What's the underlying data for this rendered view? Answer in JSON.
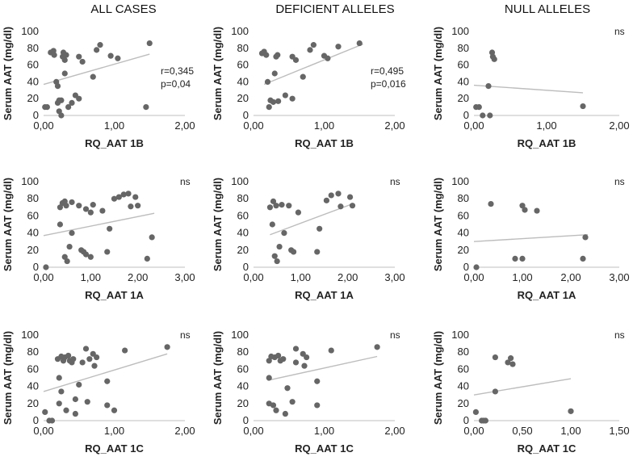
{
  "figure": {
    "column_titles": [
      "ALL CASES",
      "DEFICIENT ALLELES",
      "NULL ALLELES"
    ],
    "colors": {
      "point": "#666666",
      "trend": "#bdbdbd",
      "axis": "#bfbfbf"
    }
  },
  "chart_data": [
    {
      "id": "all-1b",
      "type": "scatter",
      "title": "ALL CASES",
      "xlabel": "RQ_AAT 1B",
      "ylabel": "Serum AAT (mg/dl)",
      "xlim": [
        0,
        2
      ],
      "ylim": [
        0,
        100
      ],
      "xticks": [
        "0,00",
        "1,00",
        "2,00"
      ],
      "xtick_values": [
        0,
        1,
        2
      ],
      "yticks": [
        "0",
        "20",
        "40",
        "60",
        "80",
        "100"
      ],
      "annotation": [
        "r=0,345",
        "p=0,04"
      ],
      "trend": [
        [
          0,
          37
        ],
        [
          1.5,
          73
        ]
      ],
      "points": [
        [
          0.02,
          10
        ],
        [
          0.05,
          10
        ],
        [
          0.1,
          75
        ],
        [
          0.14,
          77
        ],
        [
          0.15,
          72
        ],
        [
          0.18,
          40
        ],
        [
          0.2,
          35
        ],
        [
          0.2,
          15
        ],
        [
          0.22,
          18
        ],
        [
          0.22,
          5
        ],
        [
          0.25,
          18
        ],
        [
          0.25,
          0
        ],
        [
          0.27,
          70
        ],
        [
          0.28,
          75
        ],
        [
          0.3,
          66
        ],
        [
          0.3,
          50
        ],
        [
          0.32,
          72
        ],
        [
          0.35,
          10
        ],
        [
          0.4,
          15
        ],
        [
          0.45,
          24
        ],
        [
          0.5,
          70
        ],
        [
          0.5,
          20
        ],
        [
          0.55,
          64
        ],
        [
          0.7,
          46
        ],
        [
          0.75,
          78
        ],
        [
          0.8,
          84
        ],
        [
          0.95,
          71
        ],
        [
          1.05,
          68
        ],
        [
          1.45,
          10
        ],
        [
          1.5,
          86
        ]
      ]
    },
    {
      "id": "def-1b",
      "type": "scatter",
      "title": "DEFICIENT ALLELES",
      "xlabel": "RQ_AAT 1B",
      "ylabel": "Serum AAT (mg/dl)",
      "xlim": [
        0,
        2
      ],
      "ylim": [
        0,
        100
      ],
      "xticks": [
        "0,00",
        "1,00",
        "2,00"
      ],
      "xtick_values": [
        0,
        1,
        2
      ],
      "yticks": [
        "0",
        "20",
        "40",
        "60",
        "80",
        "100"
      ],
      "annotation": [
        "r=0,495",
        "p=0,016"
      ],
      "trend": [
        [
          0.15,
          37
        ],
        [
          1.55,
          85
        ]
      ],
      "points": [
        [
          0.12,
          74
        ],
        [
          0.15,
          76
        ],
        [
          0.18,
          72
        ],
        [
          0.2,
          40
        ],
        [
          0.22,
          10
        ],
        [
          0.24,
          18
        ],
        [
          0.28,
          16
        ],
        [
          0.3,
          50
        ],
        [
          0.32,
          70
        ],
        [
          0.34,
          72
        ],
        [
          0.35,
          17
        ],
        [
          0.45,
          24
        ],
        [
          0.55,
          70
        ],
        [
          0.55,
          20
        ],
        [
          0.6,
          66
        ],
        [
          0.7,
          46
        ],
        [
          0.8,
          78
        ],
        [
          0.85,
          84
        ],
        [
          1.0,
          71
        ],
        [
          1.05,
          68
        ],
        [
          1.2,
          82
        ],
        [
          1.5,
          86
        ]
      ]
    },
    {
      "id": "null-1b",
      "type": "scatter",
      "title": "NULL ALLELES",
      "xlabel": "RQ_AAT 1B",
      "ylabel": "Serum AAT (mg/dl)",
      "xlim": [
        0,
        2
      ],
      "ylim": [
        0,
        100
      ],
      "xticks": [
        "0,00",
        "1,00",
        "2,00"
      ],
      "xtick_values": [
        0,
        1,
        2
      ],
      "yticks": [
        "0",
        "20",
        "40",
        "60",
        "80",
        "100"
      ],
      "annotation": [
        "ns"
      ],
      "trend": [
        [
          0,
          36
        ],
        [
          1.5,
          27
        ]
      ],
      "points": [
        [
          0.03,
          10
        ],
        [
          0.07,
          10
        ],
        [
          0.12,
          0
        ],
        [
          0.2,
          35
        ],
        [
          0.22,
          0
        ],
        [
          0.25,
          75
        ],
        [
          0.26,
          70
        ],
        [
          0.28,
          67
        ],
        [
          1.5,
          11
        ]
      ]
    },
    {
      "id": "all-1a",
      "type": "scatter",
      "title": "ALL CASES",
      "xlabel": "RQ_AAT 1A",
      "ylabel": "Serum AAT (mg/dl)",
      "xlim": [
        0,
        3
      ],
      "ylim": [
        0,
        100
      ],
      "xticks": [
        "0,00",
        "1,00",
        "2,00",
        "3,00"
      ],
      "xtick_values": [
        0,
        1,
        2,
        3
      ],
      "yticks": [
        "0",
        "20",
        "40",
        "60",
        "80",
        "100"
      ],
      "annotation": [
        "ns"
      ],
      "trend": [
        [
          0,
          37
        ],
        [
          2.35,
          63
        ]
      ],
      "points": [
        [
          0.05,
          0
        ],
        [
          0.35,
          70
        ],
        [
          0.35,
          50
        ],
        [
          0.4,
          75
        ],
        [
          0.45,
          77
        ],
        [
          0.45,
          12
        ],
        [
          0.48,
          72
        ],
        [
          0.5,
          7
        ],
        [
          0.55,
          24
        ],
        [
          0.6,
          76
        ],
        [
          0.6,
          40
        ],
        [
          0.75,
          72
        ],
        [
          0.8,
          20
        ],
        [
          0.85,
          18
        ],
        [
          0.9,
          68
        ],
        [
          0.9,
          15
        ],
        [
          1.0,
          12
        ],
        [
          1.0,
          64
        ],
        [
          1.05,
          73
        ],
        [
          1.25,
          66
        ],
        [
          1.35,
          18
        ],
        [
          1.4,
          45
        ],
        [
          1.5,
          80
        ],
        [
          1.6,
          82
        ],
        [
          1.7,
          85
        ],
        [
          1.8,
          86
        ],
        [
          1.85,
          71
        ],
        [
          1.95,
          82
        ],
        [
          2.0,
          72
        ],
        [
          2.2,
          10
        ],
        [
          2.3,
          35
        ]
      ]
    },
    {
      "id": "def-1a",
      "type": "scatter",
      "title": "DEFICIENT ALLELES",
      "xlabel": "RQ_AAT 1A",
      "ylabel": "Serum AAT (mg/dl)",
      "xlim": [
        0,
        3
      ],
      "ylim": [
        0,
        100
      ],
      "xticks": [
        "0,00",
        "1,00",
        "2,00",
        "3,00"
      ],
      "xtick_values": [
        0,
        1,
        2,
        3
      ],
      "yticks": [
        "0",
        "20",
        "40",
        "60",
        "80",
        "100"
      ],
      "annotation": [
        "ns"
      ],
      "trend": [
        [
          0.35,
          38
        ],
        [
          2.1,
          74
        ]
      ],
      "points": [
        [
          0.35,
          70
        ],
        [
          0.4,
          50
        ],
        [
          0.42,
          77
        ],
        [
          0.45,
          13
        ],
        [
          0.48,
          72
        ],
        [
          0.5,
          7
        ],
        [
          0.55,
          24
        ],
        [
          0.6,
          73
        ],
        [
          0.65,
          40
        ],
        [
          0.75,
          72
        ],
        [
          0.8,
          20
        ],
        [
          0.85,
          18
        ],
        [
          0.95,
          64
        ],
        [
          1.35,
          18
        ],
        [
          1.4,
          45
        ],
        [
          1.55,
          78
        ],
        [
          1.65,
          84
        ],
        [
          1.8,
          86
        ],
        [
          1.85,
          71
        ],
        [
          2.05,
          82
        ],
        [
          2.1,
          72
        ]
      ]
    },
    {
      "id": "null-1a",
      "type": "scatter",
      "title": "NULL ALLELES",
      "xlabel": "RQ_AAT 1A",
      "ylabel": "Serum AAT (mg/dl)",
      "xlim": [
        0,
        3
      ],
      "ylim": [
        0,
        100
      ],
      "xticks": [
        "0,00",
        "1,00",
        "2,00",
        "3,00"
      ],
      "xtick_values": [
        0,
        1,
        2,
        3
      ],
      "yticks": [
        "0",
        "20",
        "40",
        "60",
        "80",
        "100"
      ],
      "annotation": [
        "ns"
      ],
      "trend": [
        [
          0,
          30
        ],
        [
          2.35,
          38
        ]
      ],
      "points": [
        [
          0.05,
          0
        ],
        [
          0.35,
          74
        ],
        [
          0.85,
          10
        ],
        [
          1.0,
          10
        ],
        [
          1.0,
          72
        ],
        [
          1.05,
          67
        ],
        [
          1.3,
          66
        ],
        [
          2.25,
          10
        ],
        [
          2.3,
          35
        ]
      ]
    },
    {
      "id": "all-1c",
      "type": "scatter",
      "title": "ALL CASES",
      "xlabel": "RQ_AAT 1C",
      "ylabel": "Serum AAT (mg/dl)",
      "xlim": [
        0,
        2
      ],
      "ylim": [
        0,
        100
      ],
      "xticks": [
        "0,00",
        "1,00",
        "2,00"
      ],
      "xtick_values": [
        0,
        1,
        2
      ],
      "yticks": [
        "0",
        "20",
        "40",
        "60",
        "80",
        "100"
      ],
      "annotation": [
        "ns"
      ],
      "trend": [
        [
          0,
          34
        ],
        [
          1.75,
          78
        ]
      ],
      "points": [
        [
          0.02,
          10
        ],
        [
          0.08,
          0
        ],
        [
          0.12,
          0
        ],
        [
          0.2,
          72
        ],
        [
          0.22,
          50
        ],
        [
          0.22,
          20
        ],
        [
          0.25,
          75
        ],
        [
          0.25,
          34
        ],
        [
          0.28,
          70
        ],
        [
          0.3,
          74
        ],
        [
          0.32,
          12
        ],
        [
          0.35,
          76
        ],
        [
          0.37,
          70
        ],
        [
          0.4,
          68
        ],
        [
          0.42,
          72
        ],
        [
          0.45,
          8
        ],
        [
          0.45,
          25
        ],
        [
          0.5,
          42
        ],
        [
          0.55,
          68
        ],
        [
          0.6,
          84
        ],
        [
          0.62,
          22
        ],
        [
          0.65,
          72
        ],
        [
          0.7,
          78
        ],
        [
          0.72,
          64
        ],
        [
          0.75,
          74
        ],
        [
          0.9,
          46
        ],
        [
          0.9,
          18
        ],
        [
          1.0,
          12
        ],
        [
          1.15,
          82
        ],
        [
          1.75,
          86
        ]
      ]
    },
    {
      "id": "def-1c",
      "type": "scatter",
      "title": "DEFICIENT ALLELES",
      "xlabel": "RQ_AAT 1C",
      "ylabel": "Serum AAT (mg/dl)",
      "xlim": [
        0,
        2
      ],
      "ylim": [
        0,
        100
      ],
      "xticks": [
        "0,00",
        "1,00",
        "2,00"
      ],
      "xtick_values": [
        0,
        1,
        2
      ],
      "yticks": [
        "0",
        "20",
        "40",
        "60",
        "80",
        "100"
      ],
      "annotation": [
        "ns"
      ],
      "trend": [
        [
          0.2,
          47
        ],
        [
          1.75,
          75
        ]
      ],
      "points": [
        [
          0.22,
          70
        ],
        [
          0.22,
          50
        ],
        [
          0.22,
          20
        ],
        [
          0.25,
          75
        ],
        [
          0.28,
          18
        ],
        [
          0.3,
          74
        ],
        [
          0.32,
          12
        ],
        [
          0.35,
          76
        ],
        [
          0.38,
          70
        ],
        [
          0.42,
          72
        ],
        [
          0.45,
          8
        ],
        [
          0.48,
          38
        ],
        [
          0.55,
          22
        ],
        [
          0.6,
          84
        ],
        [
          0.6,
          68
        ],
        [
          0.7,
          78
        ],
        [
          0.72,
          64
        ],
        [
          0.75,
          74
        ],
        [
          0.9,
          46
        ],
        [
          0.9,
          18
        ],
        [
          1.1,
          82
        ],
        [
          1.75,
          86
        ]
      ]
    },
    {
      "id": "null-1c",
      "type": "scatter",
      "title": "NULL ALLELES",
      "xlabel": "RQ_AAT 1C",
      "ylabel": "Serum AAT (mg/dl)",
      "xlim": [
        0,
        1.5
      ],
      "ylim": [
        0,
        100
      ],
      "xticks": [
        "0,00",
        "0,50",
        "1,00",
        "1,50"
      ],
      "xtick_values": [
        0,
        0.5,
        1,
        1.5
      ],
      "yticks": [
        "0",
        "20",
        "40",
        "60",
        "80",
        "100"
      ],
      "annotation": [
        "ns"
      ],
      "trend": [
        [
          0,
          30
        ],
        [
          1.0,
          49
        ]
      ],
      "points": [
        [
          0.02,
          10
        ],
        [
          0.08,
          0
        ],
        [
          0.1,
          0
        ],
        [
          0.12,
          0
        ],
        [
          0.22,
          74
        ],
        [
          0.22,
          34
        ],
        [
          0.35,
          68
        ],
        [
          0.38,
          73
        ],
        [
          0.4,
          66
        ],
        [
          1.0,
          11
        ]
      ]
    }
  ]
}
